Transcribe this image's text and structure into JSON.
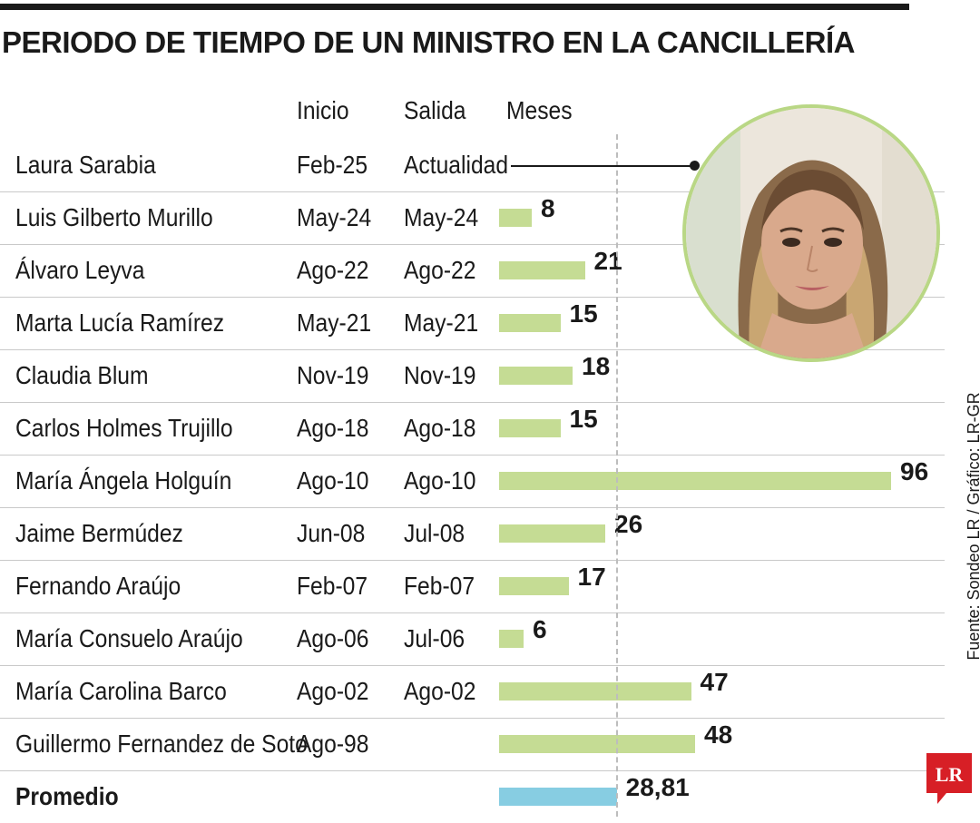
{
  "title": "PERIODO DE TIEMPO DE UN MINISTRO EN LA CANCILLERÍA",
  "columns": {
    "inicio": "Inicio",
    "salida": "Salida",
    "meses": "Meses"
  },
  "source": "Fuente: Sondeo LR / Gráfico: LR-GR",
  "logo_text": "LR",
  "colors": {
    "bar": "#c5dc94",
    "average_bar": "#87cde2",
    "accent_logo": "#d71f26"
  },
  "chart_data": {
    "type": "bar",
    "orientation": "horizontal",
    "categories": [
      "Laura Sarabia",
      "Luis Gilberto Murillo",
      "Álvaro Leyva",
      "Marta Lucía Ramírez",
      "Claudia Blum",
      "Carlos Holmes Trujillo",
      "María Ángela Holguín",
      "Jaime Bermúdez",
      "Fernando Araújo",
      "María Consuelo Araújo",
      "María Carolina Barco",
      "Guillermo Fernandez de Soto"
    ],
    "inicio": [
      "Feb-25",
      "May-24",
      "Ago-22",
      "May-21",
      "Nov-19",
      "Ago-18",
      "Ago-10",
      "Jun-08",
      "Feb-07",
      "Ago-06",
      "Ago-02",
      "Ago-98"
    ],
    "salida": [
      "Actualidad",
      "May-24",
      "Ago-22",
      "May-21",
      "Nov-19",
      "Ago-18",
      "Ago-10",
      "Jul-08",
      "Feb-07",
      "Jul-06",
      "Ago-02",
      ""
    ],
    "values": [
      null,
      8,
      21,
      15,
      18,
      15,
      96,
      26,
      17,
      6,
      47,
      48
    ],
    "value_labels": [
      "",
      "8",
      "21",
      "15",
      "18",
      "15",
      "96",
      "26",
      "17",
      "6",
      "47",
      "48"
    ],
    "average": {
      "label": "Promedio",
      "value": 28.81,
      "value_label": "28,81"
    },
    "xlim": [
      0,
      96
    ],
    "grid": false,
    "reference_line": "average"
  }
}
